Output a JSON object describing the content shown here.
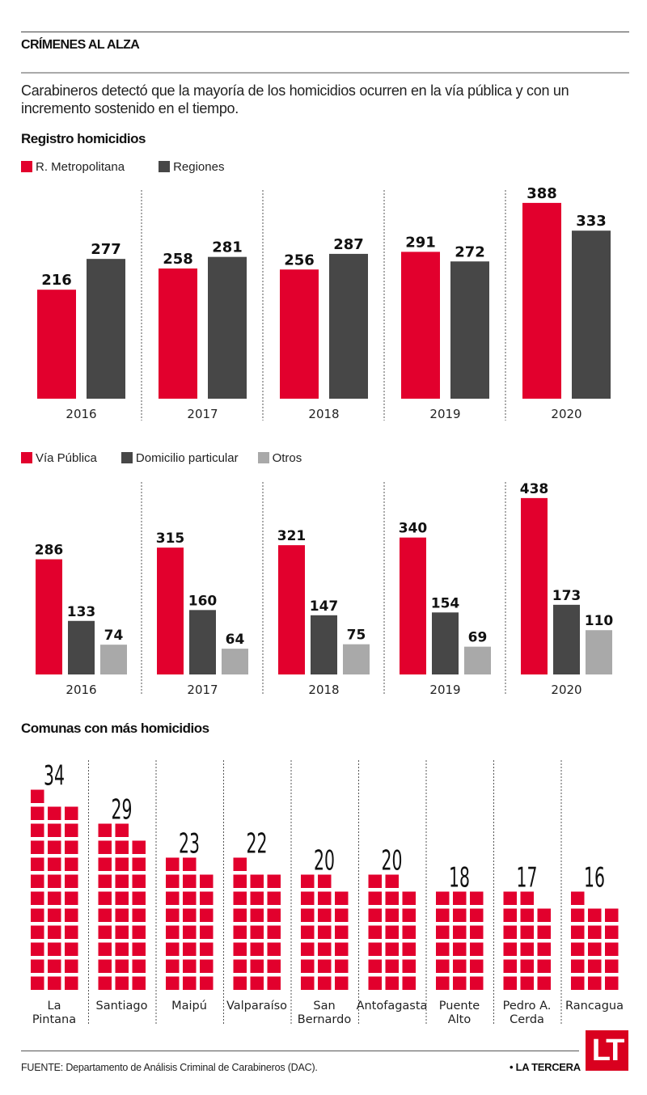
{
  "header": {
    "title": "CRÍMENES AL ALZA",
    "lead": "Carabineros detectó que la mayoría de los homicidios ocurren en la vía pública y con un incremento sostenido en el tiempo."
  },
  "colors": {
    "red": "#e2002d",
    "dark": "#474747",
    "light": "#a9a9a9"
  },
  "chart_data": [
    {
      "type": "bar",
      "title": "Registro homicidios",
      "categories": [
        "2016",
        "2017",
        "2018",
        "2019",
        "2020"
      ],
      "series": [
        {
          "name": "R. Metropolitana",
          "color": "#e2002d",
          "values": [
            216,
            258,
            256,
            291,
            388
          ]
        },
        {
          "name": "Regiones",
          "color": "#474747",
          "values": [
            277,
            281,
            287,
            272,
            333
          ]
        }
      ],
      "xlabel": "",
      "ylabel": "",
      "ylim": [
        0,
        400
      ],
      "grid": false,
      "legend": "top-left",
      "data_labels": true
    },
    {
      "type": "bar",
      "title": "",
      "categories": [
        "2016",
        "2017",
        "2018",
        "2019",
        "2020"
      ],
      "series": [
        {
          "name": "Vía Pública",
          "color": "#e2002d",
          "values": [
            286,
            315,
            321,
            340,
            438
          ]
        },
        {
          "name": "Domicilio particular",
          "color": "#474747",
          "values": [
            133,
            160,
            147,
            154,
            173
          ]
        },
        {
          "name": "Otros",
          "color": "#a9a9a9",
          "values": [
            74,
            64,
            75,
            69,
            110
          ]
        }
      ],
      "xlabel": "",
      "ylabel": "",
      "ylim": [
        0,
        450
      ],
      "grid": false,
      "legend": "top-left",
      "data_labels": true
    },
    {
      "type": "bar",
      "subtype": "waffle",
      "title": "Comunas con más homicidios",
      "unit": "1 square = 1 homicide",
      "categories": [
        "La Pintana",
        "Santiago",
        "Maipú",
        "Valparaíso",
        "San Bernardo",
        "Antofagasta",
        "Puente Alto",
        "Pedro A. Cerda",
        "Rancagua"
      ],
      "category_lines": [
        [
          "La",
          "Pintana"
        ],
        [
          "Santiago"
        ],
        [
          "Maipú"
        ],
        [
          "Valparaíso"
        ],
        [
          "San",
          "Bernardo"
        ],
        [
          "Antofagasta"
        ],
        [
          "Puente",
          "Alto"
        ],
        [
          "Pedro A.",
          "Cerda"
        ],
        [
          "Rancagua"
        ]
      ],
      "values": [
        34,
        29,
        23,
        22,
        20,
        20,
        18,
        17,
        16
      ],
      "color": "#e2002d"
    }
  ],
  "footer": {
    "source": "FUENTE: Departamento de Análisis Criminal de Carabineros (DAC).",
    "brand": "• LA TERCERA",
    "logo": "LT"
  }
}
